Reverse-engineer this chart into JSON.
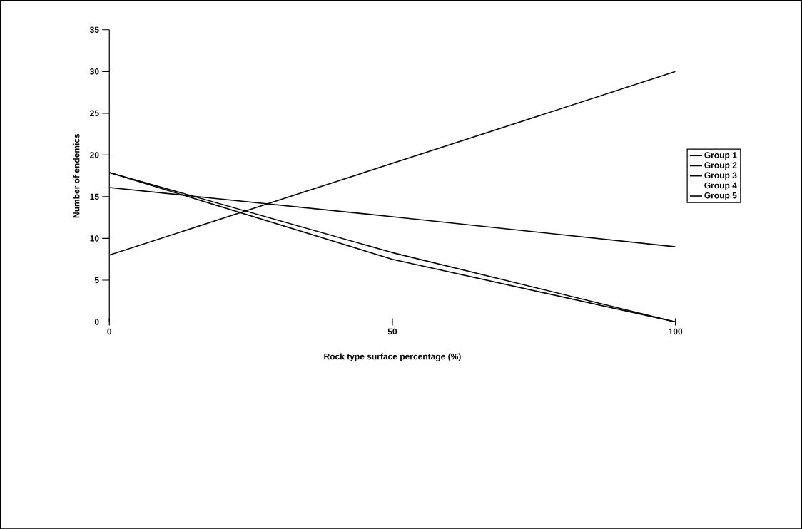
{
  "chart_data": {
    "type": "line",
    "xlabel": "Rock type surface percentage (%)",
    "ylabel": "Number of endemics",
    "x": [
      0,
      50,
      100
    ],
    "series": [
      {
        "name": "Group 1",
        "color": "#000000",
        "values": [
          8,
          19,
          30
        ]
      },
      {
        "name": "Group 2",
        "color": "#000000",
        "values": [
          16.1,
          12.6,
          9
        ]
      },
      {
        "name": "Group 3",
        "color": "#000000",
        "values": [
          17.9,
          8.3,
          0
        ]
      },
      {
        "name": "Group 4",
        "values": [
          null,
          null,
          null
        ]
      },
      {
        "name": "Group 5",
        "color": "#000000",
        "values": [
          17.9,
          7.5,
          0
        ]
      }
    ],
    "xlim": [
      0,
      100
    ],
    "xticks": [
      0,
      50,
      100
    ],
    "ylim": [
      0,
      35
    ],
    "yticks": [
      0,
      5,
      10,
      15,
      20,
      25,
      30,
      35
    ],
    "grid": false,
    "legend": "right",
    "marker": "none",
    "line_style": "solid"
  }
}
